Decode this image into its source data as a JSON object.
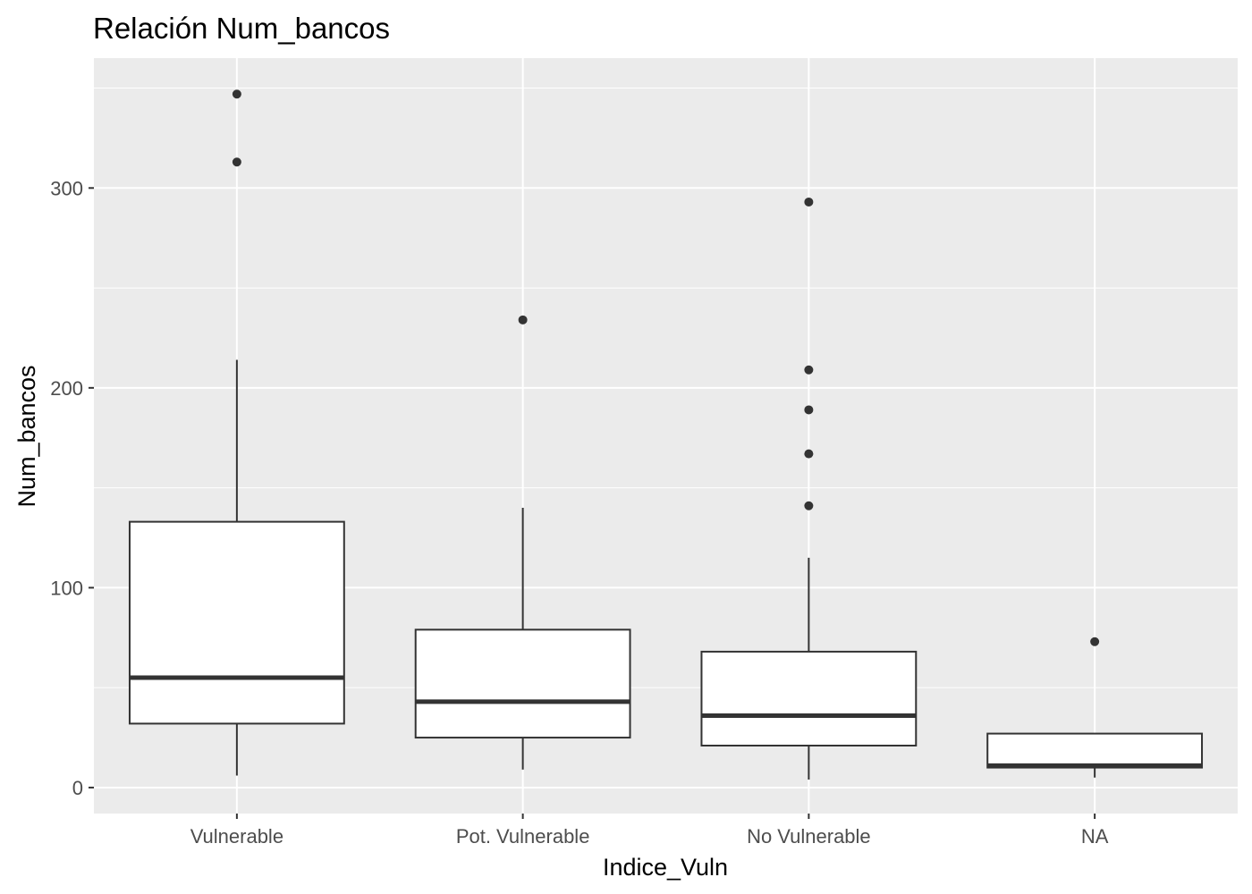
{
  "chart_data": {
    "type": "boxplot",
    "title": "Relación  Num_bancos",
    "xlabel": "Indice_Vuln",
    "ylabel": "Num_bancos",
    "ylim": [
      -13,
      365
    ],
    "yticks": [
      0,
      100,
      200,
      300
    ],
    "grid": true,
    "categories": [
      "Vulnerable",
      "Pot. Vulnerable",
      "No Vulnerable",
      "NA"
    ],
    "boxes": [
      {
        "category": "Vulnerable",
        "min": 6,
        "q1": 32,
        "median": 55,
        "q3": 133,
        "max": 214,
        "outliers": [
          313,
          347
        ]
      },
      {
        "category": "Pot. Vulnerable",
        "min": 9,
        "q1": 25,
        "median": 43,
        "q3": 79,
        "max": 140,
        "outliers": [
          234
        ]
      },
      {
        "category": "No Vulnerable",
        "min": 4,
        "q1": 21,
        "median": 36,
        "q3": 68,
        "max": 115,
        "outliers": [
          141,
          167,
          189,
          209,
          293
        ]
      },
      {
        "category": "NA",
        "min": 5,
        "q1": 10,
        "median": 11,
        "q3": 27,
        "max": 27,
        "outliers": [
          73
        ]
      }
    ],
    "colors": {
      "panel": "#ebebeb",
      "grid_major": "#ffffff",
      "box_fill": "#ffffff",
      "box_line": "#333333",
      "outlier": "#333333",
      "tick_text": "#4d4d4d",
      "tick_mark": "#333333"
    }
  }
}
